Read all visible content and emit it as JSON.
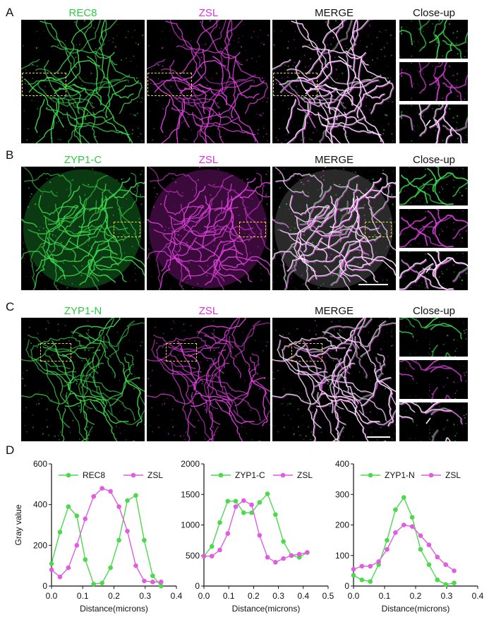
{
  "panels": {
    "A": {
      "letter": "A",
      "titles": [
        "REC8",
        "ZSL",
        "MERGE",
        "Close-up"
      ]
    },
    "B": {
      "letter": "B",
      "titles": [
        "ZYP1-C",
        "ZSL",
        "MERGE",
        "Close-up"
      ]
    },
    "C": {
      "letter": "C",
      "titles": [
        "ZYP1-N",
        "ZSL",
        "MERGE",
        "Close-up"
      ]
    },
    "D": {
      "letter": "D"
    }
  },
  "colors": {
    "green": "#2ecc40",
    "magenta": "#e030d8",
    "green_line": "#4cd94c",
    "magenta_line": "#e05ce0",
    "box": "#e8d33a"
  },
  "chart_data": [
    {
      "type": "line",
      "xlabel": "Distance(microns)",
      "ylabel": "Gray value",
      "xlim": [
        0,
        0.4
      ],
      "ylim": [
        0,
        600
      ],
      "xticks": [
        "0.0",
        "0.1",
        "0.2",
        "0.3",
        "0.4"
      ],
      "yticks": [
        "0",
        "200",
        "400",
        "600"
      ],
      "series": [
        {
          "name": "REC8",
          "color": "green",
          "x": [
            0,
            0.027,
            0.054,
            0.081,
            0.108,
            0.135,
            0.162,
            0.189,
            0.216,
            0.243,
            0.27,
            0.297,
            0.324,
            0.351
          ],
          "y": [
            110,
            265,
            390,
            345,
            130,
            10,
            15,
            90,
            225,
            420,
            445,
            225,
            50,
            0
          ]
        },
        {
          "name": "ZSL",
          "color": "magenta",
          "x": [
            0,
            0.027,
            0.054,
            0.081,
            0.108,
            0.135,
            0.162,
            0.189,
            0.216,
            0.243,
            0.27,
            0.297,
            0.324,
            0.351
          ],
          "y": [
            80,
            45,
            90,
            200,
            330,
            440,
            480,
            465,
            390,
            270,
            100,
            25,
            20,
            20
          ]
        }
      ]
    },
    {
      "type": "line",
      "xlabel": "Distance(microns)",
      "ylabel": "",
      "xlim": [
        0,
        0.5
      ],
      "ylim": [
        0,
        2000
      ],
      "xticks": [
        "0.0",
        "0.1",
        "0.2",
        "0.3",
        "0.4",
        "0.5"
      ],
      "yticks": [
        "0",
        "500",
        "1000",
        "1500",
        "2000"
      ],
      "series": [
        {
          "name": "ZYP1-C",
          "color": "green",
          "x": [
            0,
            0.032,
            0.064,
            0.096,
            0.128,
            0.16,
            0.192,
            0.224,
            0.256,
            0.288,
            0.32,
            0.352,
            0.384,
            0.416
          ],
          "y": [
            490,
            650,
            1040,
            1390,
            1390,
            1200,
            1200,
            1370,
            1510,
            1170,
            730,
            500,
            470,
            550
          ]
        },
        {
          "name": "ZSL",
          "color": "magenta",
          "x": [
            0,
            0.032,
            0.064,
            0.096,
            0.128,
            0.16,
            0.192,
            0.224,
            0.256,
            0.288,
            0.32,
            0.352,
            0.384,
            0.416
          ],
          "y": [
            490,
            490,
            590,
            860,
            1300,
            1400,
            1330,
            830,
            470,
            390,
            450,
            500,
            520,
            550
          ]
        }
      ]
    },
    {
      "type": "line",
      "xlabel": "Distance(microns)",
      "ylabel": "",
      "xlim": [
        0,
        0.4
      ],
      "ylim": [
        0,
        400
      ],
      "xticks": [
        "0.0",
        "0.1",
        "0.2",
        "0.3",
        "0.4"
      ],
      "yticks": [
        "0",
        "100",
        "200",
        "300",
        "400"
      ],
      "series": [
        {
          "name": "ZYP1-N",
          "color": "green",
          "x": [
            0,
            0.027,
            0.054,
            0.081,
            0.108,
            0.135,
            0.162,
            0.189,
            0.216,
            0.243,
            0.27,
            0.297,
            0.324
          ],
          "y": [
            35,
            20,
            15,
            70,
            150,
            250,
            290,
            225,
            120,
            70,
            20,
            5,
            10
          ]
        },
        {
          "name": "ZSL",
          "color": "magenta",
          "x": [
            0,
            0.027,
            0.054,
            0.081,
            0.108,
            0.135,
            0.162,
            0.189,
            0.216,
            0.243,
            0.27,
            0.297,
            0.324
          ],
          "y": [
            55,
            65,
            65,
            80,
            120,
            175,
            200,
            195,
            165,
            135,
            95,
            70,
            50
          ]
        }
      ]
    }
  ]
}
